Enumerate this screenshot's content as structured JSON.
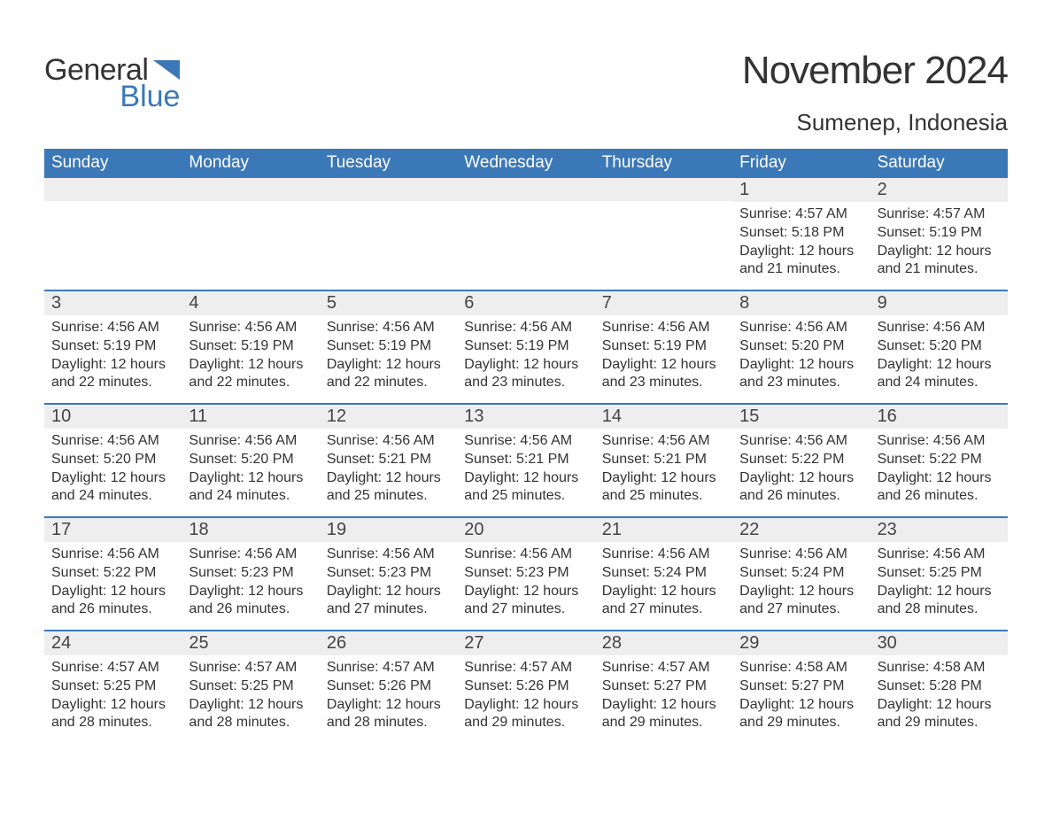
{
  "logo": {
    "general": "General",
    "blue": "Blue",
    "flag_color": "#3b78b8"
  },
  "title": "November 2024",
  "location": "Sumenep, Indonesia",
  "colors": {
    "header_bg": "#3b78b8",
    "header_text": "#ffffff",
    "band_bg": "#eeeeee",
    "text": "#333333",
    "border": "#3b78b8"
  },
  "typography": {
    "title_fontsize": 44,
    "location_fontsize": 26,
    "dow_fontsize": 19,
    "daynum_fontsize": 20,
    "body_fontsize": 16
  },
  "layout": {
    "columns": 7,
    "rows": 5,
    "cell_min_height": 126
  },
  "days_of_week": [
    "Sunday",
    "Monday",
    "Tuesday",
    "Wednesday",
    "Thursday",
    "Friday",
    "Saturday"
  ],
  "weeks": [
    [
      null,
      null,
      null,
      null,
      null,
      {
        "n": "1",
        "sunrise": "Sunrise: 4:57 AM",
        "sunset": "Sunset: 5:18 PM",
        "daylight": "Daylight: 12 hours and 21 minutes."
      },
      {
        "n": "2",
        "sunrise": "Sunrise: 4:57 AM",
        "sunset": "Sunset: 5:19 PM",
        "daylight": "Daylight: 12 hours and 21 minutes."
      }
    ],
    [
      {
        "n": "3",
        "sunrise": "Sunrise: 4:56 AM",
        "sunset": "Sunset: 5:19 PM",
        "daylight": "Daylight: 12 hours and 22 minutes."
      },
      {
        "n": "4",
        "sunrise": "Sunrise: 4:56 AM",
        "sunset": "Sunset: 5:19 PM",
        "daylight": "Daylight: 12 hours and 22 minutes."
      },
      {
        "n": "5",
        "sunrise": "Sunrise: 4:56 AM",
        "sunset": "Sunset: 5:19 PM",
        "daylight": "Daylight: 12 hours and 22 minutes."
      },
      {
        "n": "6",
        "sunrise": "Sunrise: 4:56 AM",
        "sunset": "Sunset: 5:19 PM",
        "daylight": "Daylight: 12 hours and 23 minutes."
      },
      {
        "n": "7",
        "sunrise": "Sunrise: 4:56 AM",
        "sunset": "Sunset: 5:19 PM",
        "daylight": "Daylight: 12 hours and 23 minutes."
      },
      {
        "n": "8",
        "sunrise": "Sunrise: 4:56 AM",
        "sunset": "Sunset: 5:20 PM",
        "daylight": "Daylight: 12 hours and 23 minutes."
      },
      {
        "n": "9",
        "sunrise": "Sunrise: 4:56 AM",
        "sunset": "Sunset: 5:20 PM",
        "daylight": "Daylight: 12 hours and 24 minutes."
      }
    ],
    [
      {
        "n": "10",
        "sunrise": "Sunrise: 4:56 AM",
        "sunset": "Sunset: 5:20 PM",
        "daylight": "Daylight: 12 hours and 24 minutes."
      },
      {
        "n": "11",
        "sunrise": "Sunrise: 4:56 AM",
        "sunset": "Sunset: 5:20 PM",
        "daylight": "Daylight: 12 hours and 24 minutes."
      },
      {
        "n": "12",
        "sunrise": "Sunrise: 4:56 AM",
        "sunset": "Sunset: 5:21 PM",
        "daylight": "Daylight: 12 hours and 25 minutes."
      },
      {
        "n": "13",
        "sunrise": "Sunrise: 4:56 AM",
        "sunset": "Sunset: 5:21 PM",
        "daylight": "Daylight: 12 hours and 25 minutes."
      },
      {
        "n": "14",
        "sunrise": "Sunrise: 4:56 AM",
        "sunset": "Sunset: 5:21 PM",
        "daylight": "Daylight: 12 hours and 25 minutes."
      },
      {
        "n": "15",
        "sunrise": "Sunrise: 4:56 AM",
        "sunset": "Sunset: 5:22 PM",
        "daylight": "Daylight: 12 hours and 26 minutes."
      },
      {
        "n": "16",
        "sunrise": "Sunrise: 4:56 AM",
        "sunset": "Sunset: 5:22 PM",
        "daylight": "Daylight: 12 hours and 26 minutes."
      }
    ],
    [
      {
        "n": "17",
        "sunrise": "Sunrise: 4:56 AM",
        "sunset": "Sunset: 5:22 PM",
        "daylight": "Daylight: 12 hours and 26 minutes."
      },
      {
        "n": "18",
        "sunrise": "Sunrise: 4:56 AM",
        "sunset": "Sunset: 5:23 PM",
        "daylight": "Daylight: 12 hours and 26 minutes."
      },
      {
        "n": "19",
        "sunrise": "Sunrise: 4:56 AM",
        "sunset": "Sunset: 5:23 PM",
        "daylight": "Daylight: 12 hours and 27 minutes."
      },
      {
        "n": "20",
        "sunrise": "Sunrise: 4:56 AM",
        "sunset": "Sunset: 5:23 PM",
        "daylight": "Daylight: 12 hours and 27 minutes."
      },
      {
        "n": "21",
        "sunrise": "Sunrise: 4:56 AM",
        "sunset": "Sunset: 5:24 PM",
        "daylight": "Daylight: 12 hours and 27 minutes."
      },
      {
        "n": "22",
        "sunrise": "Sunrise: 4:56 AM",
        "sunset": "Sunset: 5:24 PM",
        "daylight": "Daylight: 12 hours and 27 minutes."
      },
      {
        "n": "23",
        "sunrise": "Sunrise: 4:56 AM",
        "sunset": "Sunset: 5:25 PM",
        "daylight": "Daylight: 12 hours and 28 minutes."
      }
    ],
    [
      {
        "n": "24",
        "sunrise": "Sunrise: 4:57 AM",
        "sunset": "Sunset: 5:25 PM",
        "daylight": "Daylight: 12 hours and 28 minutes."
      },
      {
        "n": "25",
        "sunrise": "Sunrise: 4:57 AM",
        "sunset": "Sunset: 5:25 PM",
        "daylight": "Daylight: 12 hours and 28 minutes."
      },
      {
        "n": "26",
        "sunrise": "Sunrise: 4:57 AM",
        "sunset": "Sunset: 5:26 PM",
        "daylight": "Daylight: 12 hours and 28 minutes."
      },
      {
        "n": "27",
        "sunrise": "Sunrise: 4:57 AM",
        "sunset": "Sunset: 5:26 PM",
        "daylight": "Daylight: 12 hours and 29 minutes."
      },
      {
        "n": "28",
        "sunrise": "Sunrise: 4:57 AM",
        "sunset": "Sunset: 5:27 PM",
        "daylight": "Daylight: 12 hours and 29 minutes."
      },
      {
        "n": "29",
        "sunrise": "Sunrise: 4:58 AM",
        "sunset": "Sunset: 5:27 PM",
        "daylight": "Daylight: 12 hours and 29 minutes."
      },
      {
        "n": "30",
        "sunrise": "Sunrise: 4:58 AM",
        "sunset": "Sunset: 5:28 PM",
        "daylight": "Daylight: 12 hours and 29 minutes."
      }
    ]
  ]
}
